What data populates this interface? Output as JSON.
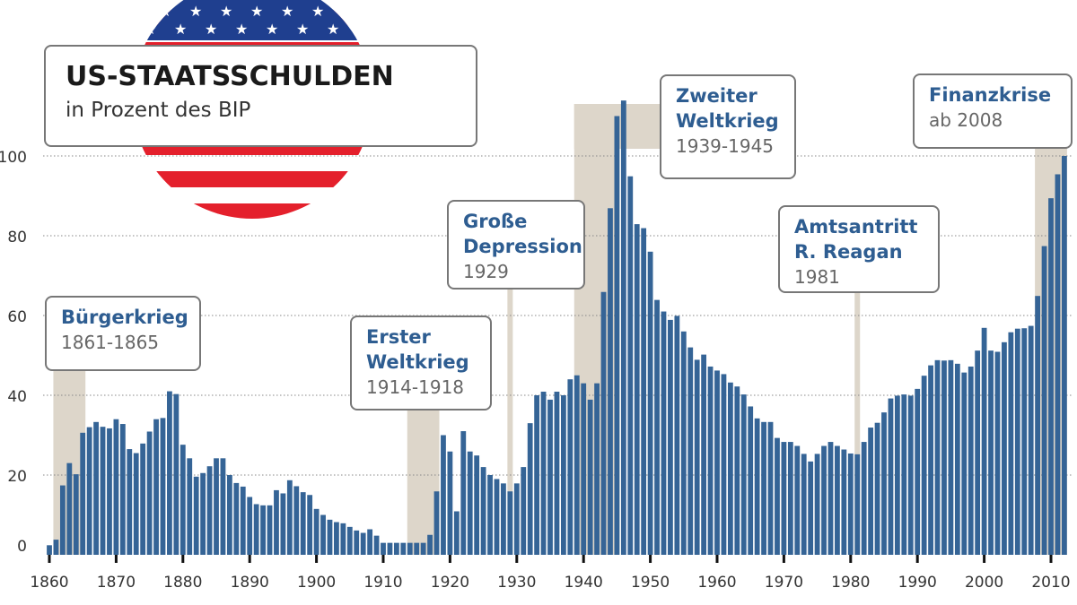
{
  "title": "US-STAATSSCHULDEN",
  "subtitle": "in Prozent des BIP",
  "colors": {
    "bar": "#356496",
    "shade": "#ddd6ca",
    "annotation_title": "#2e5d91",
    "flag_red": "#e4202c",
    "flag_blue": "#1f3f8f"
  },
  "annotations": [
    {
      "title": "Bürgerkrieg",
      "years": "1861-1865"
    },
    {
      "title": "Erster\nWeltkrieg",
      "years": "1914-1918"
    },
    {
      "title": "Große\nDepression",
      "years": "1929"
    },
    {
      "title": "Zweiter\nWeltkrieg",
      "years": "1939-1945"
    },
    {
      "title": "Amtsantritt\nR. Reagan",
      "years": "1981"
    },
    {
      "title": "Finanzkrise",
      "years": "ab 2008"
    }
  ],
  "chart_data": {
    "type": "bar",
    "title": "US-STAATSSCHULDEN",
    "subtitle": "in Prozent des BIP",
    "xlabel": "",
    "ylabel": "",
    "ylim": [
      0,
      115
    ],
    "yticks": [
      0,
      20,
      40,
      60,
      80,
      100
    ],
    "xticks": [
      1860,
      1870,
      1880,
      1890,
      1900,
      1910,
      1920,
      1930,
      1940,
      1950,
      1960,
      1970,
      1980,
      1990,
      2000,
      2010
    ],
    "grid": true,
    "x_start": 1860,
    "x_end": 2012,
    "values": [
      2.4,
      3.8,
      17.4,
      23,
      20.2,
      30.6,
      32,
      33.3,
      32.1,
      31.7,
      34,
      32.8,
      26.5,
      25.5,
      27.9,
      30.9,
      34,
      34.3,
      41,
      40.3,
      27.6,
      24.2,
      19.6,
      20.5,
      22.2,
      24.2,
      24.2,
      20,
      18,
      17.1,
      14.5,
      12.7,
      12.4,
      12.4,
      16.2,
      15.4,
      18.7,
      17.2,
      15.7,
      15,
      11.5,
      10,
      8.8,
      8.2,
      7.9,
      7,
      6.1,
      5.5,
      6.4,
      4.8,
      3,
      3,
      3,
      3,
      3,
      3,
      3,
      5,
      15.9,
      30,
      25.9,
      10.9,
      31,
      25.9,
      24.9,
      22,
      20,
      19,
      17.9,
      15.9,
      17.9,
      22,
      33,
      40,
      40.9,
      38.9,
      40.9,
      40,
      44,
      45,
      43,
      38.9,
      43,
      65.9,
      86.9,
      110,
      113.9,
      94.9,
      82.9,
      81.9,
      76,
      63.9,
      61,
      58.9,
      59.9,
      56,
      52,
      48.9,
      50.2,
      47.2,
      46.2,
      45.3,
      43.2,
      42.2,
      40.2,
      37.2,
      34.2,
      33.3,
      33.3,
      29.3,
      28.3,
      28.3,
      27.3,
      25.3,
      23.4,
      25.3,
      27.3,
      28.3,
      27.3,
      26.4,
      25.4,
      25.2,
      28.3,
      31.9,
      33.1,
      35.7,
      39.2,
      39.9,
      40.2,
      39.9,
      41.6,
      44.9,
      47.5,
      48.8,
      48.7,
      48.8,
      47.9,
      45.7,
      47.2,
      51.2,
      56.9,
      51.2,
      50.9,
      53.3,
      55.8,
      56.7,
      56.8,
      57.4,
      64.9,
      77.4,
      89.4,
      95.4,
      100
    ],
    "highlighted_periods": [
      [
        1861,
        1865
      ],
      [
        1914,
        1918
      ],
      [
        1929,
        1929
      ],
      [
        1939,
        1945
      ],
      [
        1981,
        1981
      ],
      [
        2008,
        2012
      ]
    ]
  }
}
